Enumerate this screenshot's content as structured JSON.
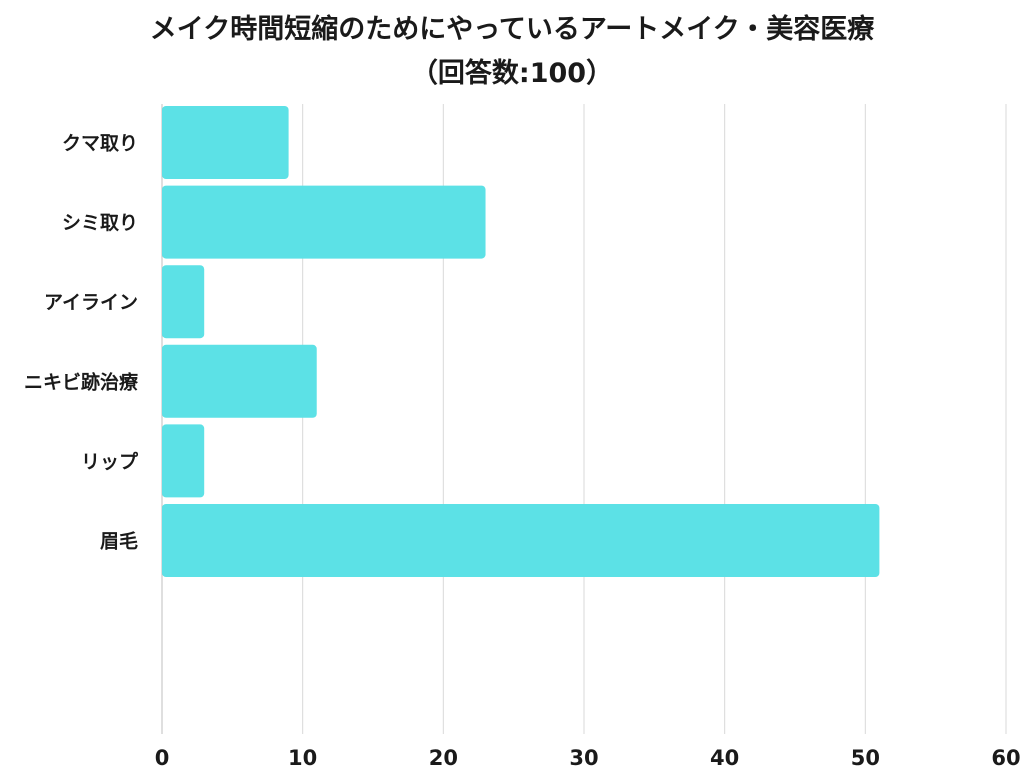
{
  "chart_data": {
    "type": "bar",
    "orientation": "horizontal",
    "title": "メイク時間短縮のためにやっているアートメイク・美容医療",
    "subtitle": "（回答数:100）",
    "categories": [
      "クマ取り",
      "シミ取り",
      "アイライン",
      "ニキビ跡治療",
      "リップ",
      "眉毛"
    ],
    "values": [
      9,
      23,
      3,
      11,
      3,
      51
    ],
    "xlim": [
      0,
      60
    ],
    "xticks": [
      0,
      10,
      20,
      30,
      40,
      50,
      60
    ],
    "xlabel": "",
    "ylabel": "",
    "grid": true,
    "colors": {
      "bar": "#5ce1e6",
      "grid": "#d9d9d9",
      "axis": "#bfbfbf",
      "text": "#1a1a1a"
    }
  }
}
